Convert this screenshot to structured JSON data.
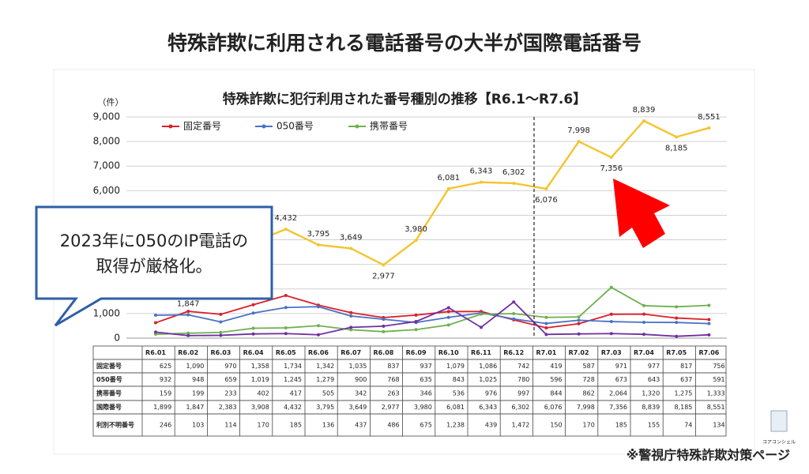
{
  "heading": "特殊詐欺に利用される電話番号の大半が国際電話番号",
  "callout": {
    "lines": [
      "2023年に050のIP電話の",
      "取得が厳格化。"
    ]
  },
  "source": "※警視庁特殊詐欺対策ページ",
  "logo": "コアコンシェル",
  "chart_data": {
    "type": "line",
    "title": "特殊詐欺に犯行利用された番号種別の推移【R6.1～R7.6】",
    "y_label": "（件）",
    "categories": [
      "R6.01",
      "R6.02",
      "R6.03",
      "R6.04",
      "R6.05",
      "R6.06",
      "R6.07",
      "R6.08",
      "R6.09",
      "R6.10",
      "R6.11",
      "R6.12",
      "R7.01",
      "R7.02",
      "R7.03",
      "R7.04",
      "R7.05",
      "R7.06"
    ],
    "ylim": [
      0,
      9000
    ],
    "yticks": [
      0,
      {
        "value": 1000,
        "label": "1,000"
      },
      {
        "value": 2000,
        "label": "2,000"
      },
      {
        "value": 3000,
        "label": "3,000"
      },
      {
        "value": 4000,
        "label": "4,000"
      },
      {
        "value": 5000,
        "label": "5,000"
      },
      {
        "value": 6000,
        "label": "6,000"
      },
      {
        "value": 7000,
        "label": "7,000"
      },
      {
        "value": 8000,
        "label": "8,000"
      },
      {
        "value": 9000,
        "label": "9,000"
      }
    ],
    "grid": true,
    "series": [
      {
        "name": "固定番号",
        "color": "#d9202a",
        "legend": true,
        "data_labels": false,
        "values": [
          625,
          1090,
          970,
          1358,
          1734,
          1342,
          1035,
          837,
          937,
          1079,
          1086,
          742,
          419,
          587,
          971,
          977,
          817,
          756
        ],
        "value_labels": [
          "625",
          "1,090",
          "970",
          "1,358",
          "1,734",
          "1,342",
          "1,035",
          "837",
          "937",
          "1,079",
          "1,086",
          "742",
          "419",
          "587",
          "971",
          "977",
          "817",
          "756"
        ]
      },
      {
        "name": "050番号",
        "color": "#4a72c4",
        "legend": true,
        "data_labels": false,
        "values": [
          932,
          948,
          659,
          1019,
          1245,
          1279,
          900,
          768,
          635,
          843,
          1025,
          780,
          596,
          728,
          673,
          643,
          637,
          591
        ],
        "value_labels": [
          "932",
          "948",
          "659",
          "1,019",
          "1,245",
          "1,279",
          "900",
          "768",
          "635",
          "843",
          "1,025",
          "780",
          "596",
          "728",
          "673",
          "643",
          "637",
          "591"
        ]
      },
      {
        "name": "携帯番号",
        "color": "#70b050",
        "legend": true,
        "data_labels": false,
        "values": [
          159,
          199,
          233,
          402,
          417,
          505,
          342,
          263,
          346,
          536,
          976,
          997,
          844,
          862,
          2064,
          1320,
          1275,
          1333
        ],
        "value_labels": [
          "159",
          "199",
          "233",
          "402",
          "417",
          "505",
          "342",
          "263",
          "346",
          "536",
          "976",
          "997",
          "844",
          "862",
          "2,064",
          "1,320",
          "1,275",
          "1,333"
        ]
      },
      {
        "name": "国際番号",
        "color": "#f2c531",
        "legend": false,
        "data_labels": true,
        "values": [
          1899,
          1847,
          2383,
          3908,
          4432,
          3795,
          3649,
          2977,
          3980,
          6081,
          6343,
          6302,
          6076,
          7998,
          7356,
          8839,
          8185,
          8551
        ],
        "value_labels": [
          "1,899",
          "1,847",
          "2,383",
          "3,908",
          "4,432",
          "3,795",
          "3,649",
          "2,977",
          "3,980",
          "6,081",
          "6,343",
          "6,302",
          "6,076",
          "7,998",
          "7,356",
          "8,839",
          "8,185",
          "8,551"
        ]
      },
      {
        "name": "利別不明番号",
        "color": "#7030a0",
        "legend": false,
        "data_labels": false,
        "values": [
          246,
          103,
          114,
          170,
          185,
          136,
          437,
          486,
          675,
          1238,
          439,
          1472,
          150,
          170,
          185,
          155,
          74,
          134
        ],
        "value_labels": [
          "246",
          "103",
          "114",
          "170",
          "185",
          "136",
          "437",
          "486",
          "675",
          "1,238",
          "439",
          "1,472",
          "150",
          "170",
          "185",
          "155",
          "74",
          "134"
        ]
      }
    ]
  }
}
